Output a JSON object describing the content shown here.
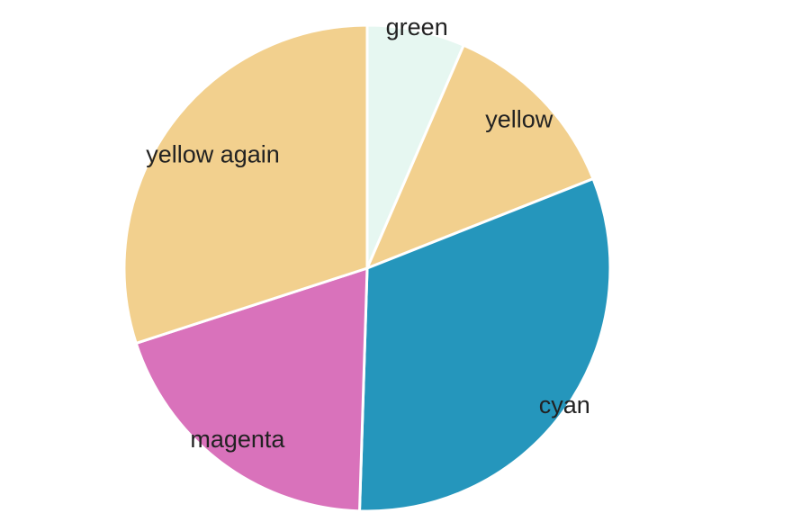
{
  "chart_data": {
    "type": "pie",
    "title": "",
    "slices": [
      {
        "label": "green",
        "value": 6.5,
        "color": "#e6f7f1"
      },
      {
        "label": "yellow",
        "value": 12.5,
        "color": "#f2d08e"
      },
      {
        "label": "cyan",
        "value": 31.5,
        "color": "#2596bc"
      },
      {
        "label": "magenta",
        "value": 19.5,
        "color": "#d972bb"
      },
      {
        "label": "yellow again",
        "value": 30.0,
        "color": "#f2d08e"
      }
    ],
    "start_angle": "12 o'clock",
    "direction": "clockwise",
    "legend": "none"
  }
}
